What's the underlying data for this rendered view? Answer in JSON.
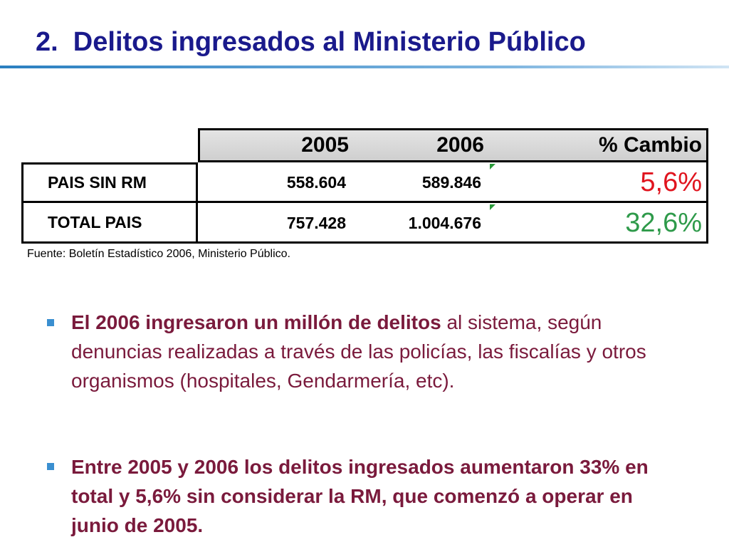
{
  "title": "2.  Delitos ingresados al Ministerio Público",
  "table": {
    "columns": [
      "2005",
      "2006",
      "% Cambio"
    ],
    "rows": [
      [
        "PAIS SIN RM",
        "558.604",
        "589.846",
        "5,6%"
      ],
      [
        "TOTAL PAIS",
        "757.428",
        "1.004.676",
        "32,6%"
      ]
    ]
  },
  "source": "Fuente: Boletín Estadístico 2006, Ministerio Público.",
  "bullets": [
    {
      "bold": "El 2006 ingresaron un millón de delitos",
      "text": " al sistema, según denuncias realizadas a través de las policías, las fiscalías y otros organismos (hospitales, Gendarmería, etc)."
    },
    {
      "bold": "Entre 2005 y 2006 los delitos ingresados aumentaron 33% en total y 5,6% sin considerar la RM, que comenzó a operar en junio de 2005."
    }
  ]
}
